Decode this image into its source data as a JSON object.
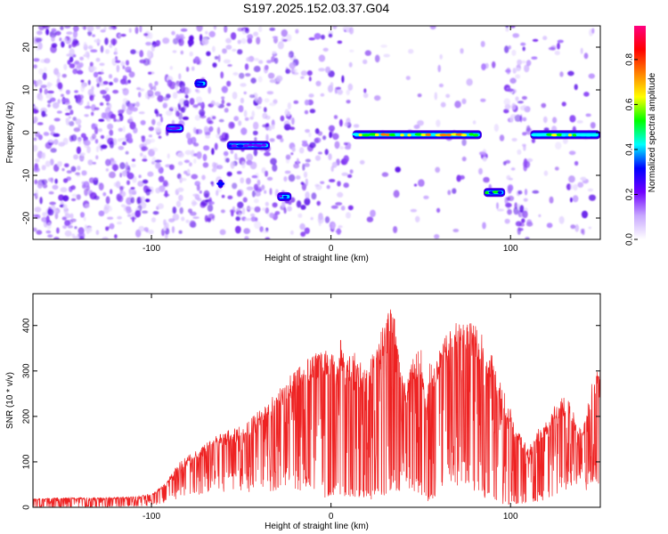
{
  "figure": {
    "title": "S197.2025.152.03.37.G04",
    "background_color": "#ffffff"
  },
  "chart_data": [
    {
      "type": "heatmap",
      "title": "",
      "xlabel": "Height of straight line (km)",
      "ylabel": "Frequency (Hz)",
      "xlim": [
        -166,
        150
      ],
      "ylim": [
        -25,
        25
      ],
      "x_ticks": [
        -100,
        0,
        100
      ],
      "y_ticks": [
        -20,
        -10,
        0,
        10,
        20
      ],
      "grid": false,
      "colorbar": {
        "label": "Normalized spectral amplitude",
        "range": [
          0.0,
          0.95
        ],
        "ticks": [
          0.0,
          0.2,
          0.4,
          0.6,
          0.8
        ],
        "colors": [
          "#ffffff",
          "#c8a8ff",
          "#7000ff",
          "#0000ff",
          "#00ffff",
          "#00ff00",
          "#ffff00",
          "#ff8000",
          "#ff0000",
          "#ff0080"
        ]
      },
      "background_noise_color": "#7a2cf0",
      "strong_tracks": [
        {
          "x_start": 12,
          "x_end": 84,
          "freq": -0.5,
          "peak_amplitude": 0.85
        },
        {
          "x_start": 85,
          "x_end": 97,
          "freq": -14,
          "peak_amplitude": 0.6
        },
        {
          "x_start": 111,
          "x_end": 150,
          "freq": -0.5,
          "peak_amplitude": 0.7
        },
        {
          "x_start": -76,
          "x_end": -69,
          "freq": 11.5,
          "peak_amplitude": 0.3
        },
        {
          "x_start": -63,
          "x_end": -60,
          "freq": -12,
          "peak_amplitude": 0.3
        },
        {
          "x_start": -30,
          "x_end": -22,
          "freq": -15,
          "peak_amplitude": 0.3
        },
        {
          "x_start": -58,
          "x_end": -34,
          "freq": -3,
          "peak_amplitude": 0.25
        },
        {
          "x_start": -92,
          "x_end": -82,
          "freq": 1,
          "peak_amplitude": 0.25
        }
      ]
    },
    {
      "type": "line",
      "title": "",
      "xlabel": "Height of straight line (km)",
      "ylabel": "SNR (10 * v/v)",
      "xlim": [
        -166,
        150
      ],
      "ylim": [
        0,
        470
      ],
      "x_ticks": [
        -100,
        0,
        100
      ],
      "y_ticks": [
        0,
        100,
        200,
        300,
        400
      ],
      "grid": false,
      "line_color": "#ee2222",
      "series": [
        {
          "x": [
            -166,
            -150,
            -130,
            -110,
            -100,
            -92,
            -85,
            -78,
            -70,
            -62,
            -55,
            -48,
            -40,
            -35,
            -30,
            -25,
            -20,
            -15,
            -10,
            -5,
            0,
            3,
            5,
            8,
            12,
            16,
            20,
            25,
            30,
            35,
            38,
            42,
            46,
            50,
            53,
            55,
            58,
            62,
            66,
            70,
            75,
            80,
            84,
            87,
            90,
            95,
            100,
            105,
            110,
            115,
            120,
            125,
            130,
            135,
            140,
            145,
            150
          ],
          "y": [
            18,
            20,
            20,
            22,
            28,
            50,
            90,
            110,
            130,
            150,
            160,
            170,
            200,
            210,
            240,
            260,
            280,
            300,
            310,
            320,
            330,
            300,
            350,
            300,
            320,
            300,
            280,
            330,
            380,
            420,
            300,
            250,
            310,
            330,
            200,
            300,
            280,
            350,
            360,
            380,
            370,
            380,
            360,
            300,
            320,
            250,
            200,
            150,
            120,
            160,
            180,
            210,
            230,
            200,
            150,
            250,
            300
          ],
          "envelope_low": [
            2,
            2,
            2,
            3,
            5,
            15,
            30,
            40,
            50,
            50,
            60,
            60,
            50,
            60,
            60,
            60,
            60,
            60,
            50,
            40,
            30,
            40,
            40,
            40,
            40,
            30,
            30,
            30,
            30,
            60,
            60,
            60,
            50,
            40,
            20,
            20,
            40,
            60,
            80,
            80,
            80,
            60,
            40,
            30,
            20,
            10,
            10,
            10,
            10,
            20,
            30,
            40,
            50,
            60,
            60,
            60,
            80
          ]
        }
      ]
    }
  ]
}
